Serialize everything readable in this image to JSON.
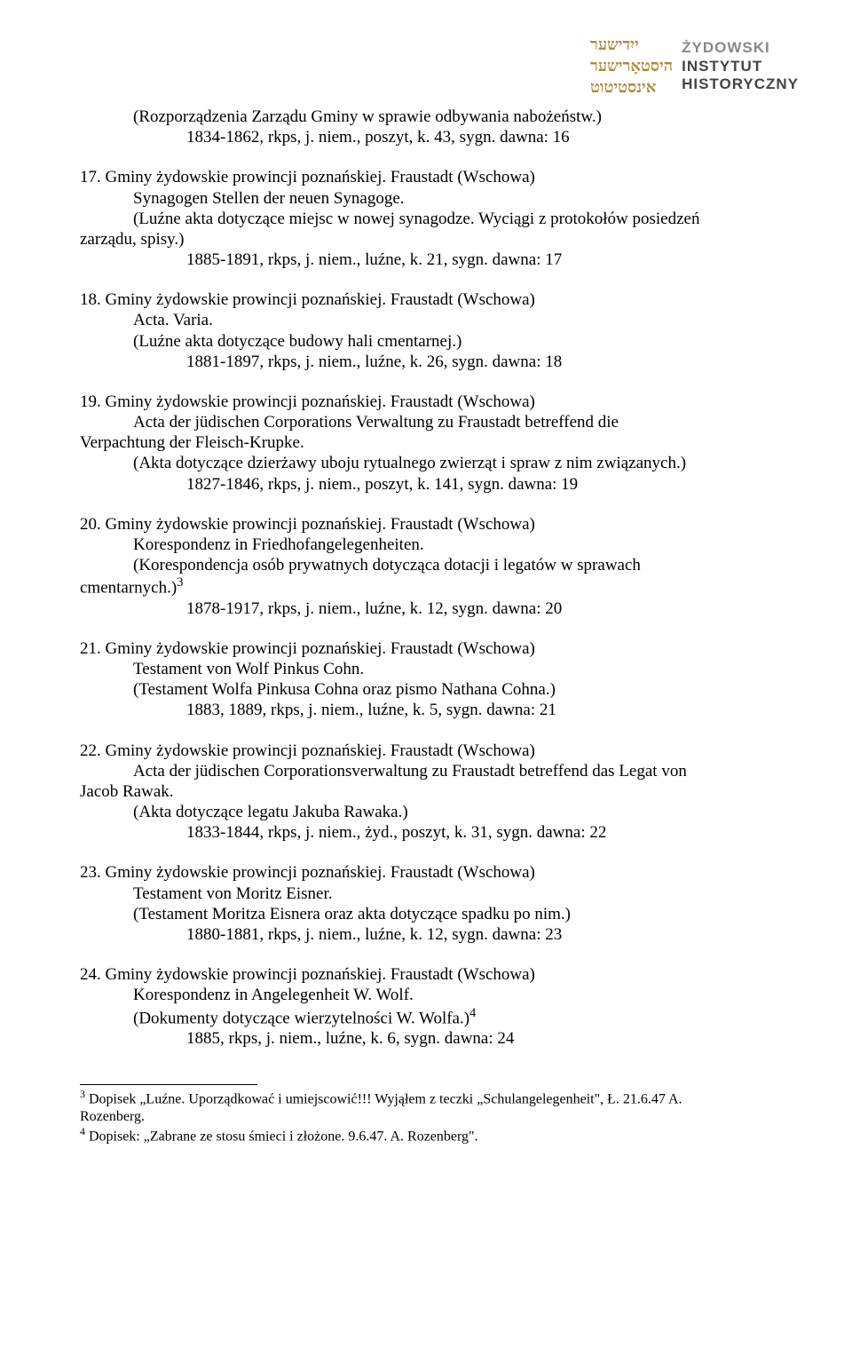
{
  "logo": {
    "line1": "ŻYDOWSKI",
    "line2": "INSTYTUT",
    "line3": "HISTORYCZNY"
  },
  "intro": {
    "l1": "(Rozporządzenia Zarządu Gminy w sprawie odbywania nabożeństw.)",
    "l2": "1834-1862, rkps, j. niem., poszyt, k. 43, sygn. dawna: 16"
  },
  "e17": {
    "head": "17. Gminy żydowskie prowincji poznańskiej. Fraustadt (Wschowa)",
    "a": "Synagogen Stellen der neuen Synagoge.",
    "b": "(Luźne akta dotyczące miejsc w nowej synagodze. Wyciągi z protokołów posiedzeń",
    "c": "zarządu, spisy.)",
    "d": "1885-1891, rkps, j. niem., luźne, k. 21, sygn. dawna: 17"
  },
  "e18": {
    "head": "18. Gminy żydowskie prowincji poznańskiej. Fraustadt (Wschowa)",
    "a": "Acta. Varia.",
    "b": "(Luźne akta dotyczące budowy hali cmentarnej.)",
    "c": "1881-1897, rkps, j. niem., luźne, k. 26, sygn. dawna: 18"
  },
  "e19": {
    "head": "19. Gminy żydowskie prowincji poznańskiej. Fraustadt (Wschowa)",
    "a": "Acta der jüdischen Corporations Verwaltung zu Fraustadt betreffend die",
    "b": "Verpachtung der Fleisch-Krupke.",
    "c": "(Akta dotyczące dzierżawy uboju rytualnego zwierząt i spraw z nim związanych.)",
    "d": "1827-1846, rkps, j. niem., poszyt, k. 141, sygn. dawna: 19"
  },
  "e20": {
    "head": "20. Gminy żydowskie prowincji poznańskiej. Fraustadt (Wschowa)",
    "a": "Korespondenz in Friedhofangelegenheiten.",
    "b": "(Korespondencja osób prywatnych dotycząca dotacji i legatów w sprawach",
    "c_pre": "cmentarnych.)",
    "c_sup": "3",
    "d": "1878-1917, rkps, j. niem., luźne, k. 12, sygn. dawna: 20"
  },
  "e21": {
    "head": "21. Gminy żydowskie prowincji poznańskiej. Fraustadt (Wschowa)",
    "a": "Testament von Wolf Pinkus Cohn.",
    "b": "(Testament Wolfa Pinkusa Cohna oraz pismo Nathana Cohna.)",
    "c": "1883, 1889, rkps, j. niem., luźne, k. 5, sygn. dawna: 21"
  },
  "e22": {
    "head": "22. Gminy żydowskie prowincji poznańskiej. Fraustadt (Wschowa)",
    "a": "Acta der jüdischen Corporationsverwaltung zu Fraustadt betreffend das Legat von",
    "b": "Jacob Rawak.",
    "c": "(Akta dotyczące legatu Jakuba Rawaka.)",
    "d": "1833-1844, rkps, j. niem., żyd., poszyt, k. 31, sygn. dawna: 22"
  },
  "e23": {
    "head": "23. Gminy żydowskie prowincji poznańskiej. Fraustadt (Wschowa)",
    "a": "Testament von Moritz Eisner.",
    "b": "(Testament Moritza Eisnera oraz akta dotyczące spadku po nim.)",
    "c": "1880-1881, rkps, j. niem., luźne, k. 12, sygn. dawna: 23"
  },
  "e24": {
    "head": "24. Gminy żydowskie prowincji poznańskiej. Fraustadt (Wschowa)",
    "a": "Korespondenz in Angelegenheit W. Wolf.",
    "b_pre": "(Dokumenty dotyczące wierzytelności W. Wolfa.)",
    "b_sup": "4",
    "c": "1885, rkps, j. niem., luźne, k. 6, sygn. dawna: 24"
  },
  "fn3": {
    "sup": "3",
    "t1": " Dopisek „Luźne. Uporządkować i umiejscowić!!! Wyjąłem z teczki „Schulangelegenheit\", Ł. 21.6.47 A.",
    "t2": "Rozenberg."
  },
  "fn4": {
    "sup": "4",
    "t": " Dopisek: „Zabrane ze stosu śmieci i złożone. 9.6.47. A. Rozenberg\"."
  }
}
